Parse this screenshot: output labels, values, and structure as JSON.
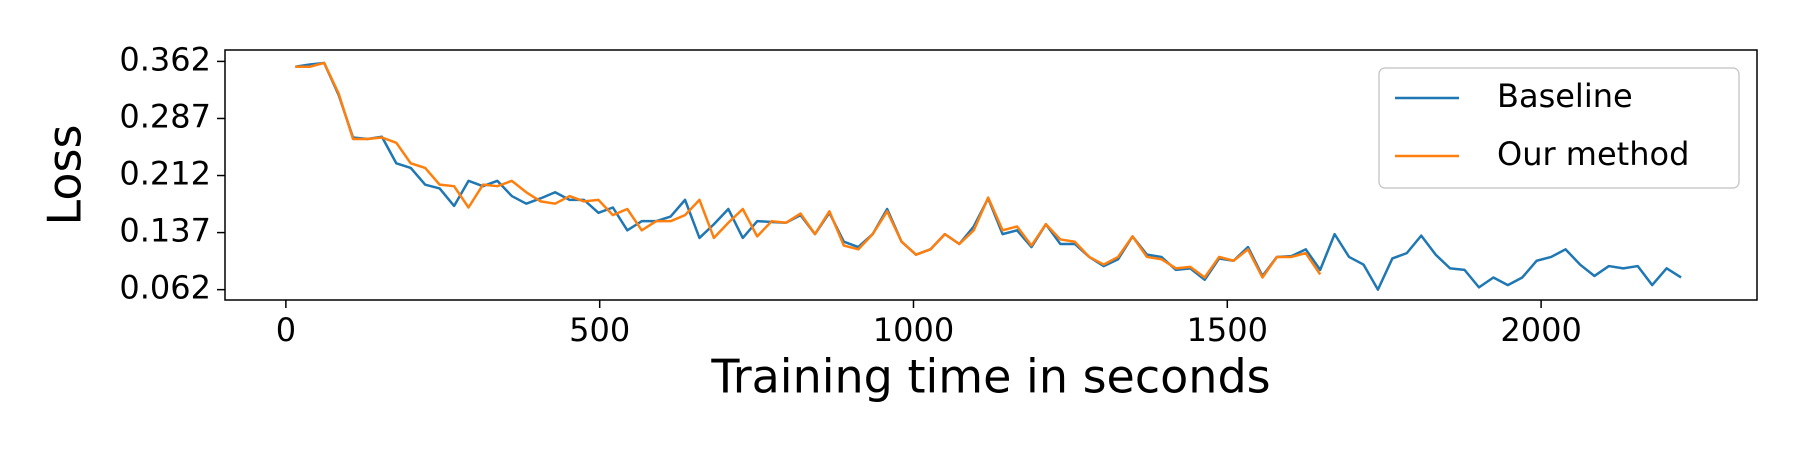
{
  "chart_data": {
    "type": "line",
    "xlabel": "Training time in seconds",
    "ylabel": "Loss",
    "xlim": [
      -97,
      2344
    ],
    "ylim": [
      0.0484,
      0.377
    ],
    "xticks": [
      0,
      500,
      1000,
      1500,
      2000
    ],
    "yticks": [
      0.362,
      0.287,
      0.212,
      0.137,
      0.062
    ],
    "legend": "upper right",
    "series": [
      {
        "name": "Baseline",
        "color": "#1f77b4",
        "x": [
          15,
          38,
          61,
          84,
          107,
          130,
          153,
          176,
          199,
          222,
          245,
          268,
          291,
          314,
          337,
          360,
          383,
          406,
          429,
          452,
          475,
          498,
          521,
          544,
          567,
          590,
          613,
          636,
          659,
          682,
          705,
          728,
          751,
          774,
          797,
          820,
          843,
          866,
          889,
          912,
          935,
          958,
          981,
          1004,
          1027,
          1050,
          1073,
          1096,
          1119,
          1142,
          1165,
          1188,
          1211,
          1234,
          1257,
          1280,
          1303,
          1326,
          1349,
          1372,
          1395,
          1418,
          1441,
          1464,
          1487,
          1510,
          1533,
          1556,
          1579,
          1602,
          1625,
          1648,
          1671,
          1694,
          1717,
          1740,
          1763,
          1786,
          1809,
          1832,
          1855,
          1878,
          1901,
          1924,
          1947,
          1970,
          1993,
          2016,
          2039,
          2062,
          2085,
          2108,
          2131,
          2154,
          2177,
          2200,
          2223
        ],
        "values": [
          0.355,
          0.358,
          0.36,
          0.318,
          0.262,
          0.26,
          0.263,
          0.228,
          0.222,
          0.2,
          0.195,
          0.172,
          0.205,
          0.198,
          0.205,
          0.185,
          0.175,
          0.182,
          0.19,
          0.18,
          0.18,
          0.163,
          0.17,
          0.14,
          0.152,
          0.152,
          0.158,
          0.18,
          0.13,
          0.148,
          0.168,
          0.13,
          0.152,
          0.151,
          0.15,
          0.16,
          0.135,
          0.163,
          0.125,
          0.118,
          0.135,
          0.168,
          0.125,
          0.108,
          0.115,
          0.135,
          0.122,
          0.145,
          0.182,
          0.135,
          0.14,
          0.118,
          0.148,
          0.122,
          0.122,
          0.105,
          0.093,
          0.102,
          0.132,
          0.108,
          0.105,
          0.088,
          0.09,
          0.075,
          0.103,
          0.1,
          0.118,
          0.08,
          0.105,
          0.106,
          0.115,
          0.088,
          0.135,
          0.105,
          0.095,
          0.062,
          0.103,
          0.11,
          0.133,
          0.108,
          0.09,
          0.088,
          0.065,
          0.078,
          0.068,
          0.078,
          0.1,
          0.105,
          0.115,
          0.095,
          0.08,
          0.093,
          0.09,
          0.093,
          0.068,
          0.09,
          0.078
        ]
      },
      {
        "name": "Our method",
        "color": "#ff7f0e",
        "x": [
          15,
          38,
          61,
          84,
          107,
          130,
          153,
          176,
          199,
          222,
          245,
          268,
          291,
          314,
          337,
          360,
          383,
          406,
          429,
          452,
          475,
          498,
          521,
          544,
          567,
          590,
          613,
          636,
          659,
          682,
          705,
          728,
          751,
          774,
          797,
          820,
          843,
          866,
          889,
          912,
          935,
          958,
          981,
          1004,
          1027,
          1050,
          1073,
          1096,
          1119,
          1142,
          1165,
          1188,
          1211,
          1234,
          1257,
          1280,
          1303,
          1326,
          1349,
          1372,
          1395,
          1418,
          1441,
          1464,
          1487,
          1510,
          1533,
          1556,
          1579,
          1602,
          1625,
          1648
        ],
        "values": [
          0.355,
          0.355,
          0.36,
          0.32,
          0.26,
          0.26,
          0.262,
          0.255,
          0.228,
          0.222,
          0.2,
          0.198,
          0.17,
          0.2,
          0.198,
          0.205,
          0.19,
          0.178,
          0.175,
          0.185,
          0.178,
          0.18,
          0.16,
          0.168,
          0.14,
          0.152,
          0.152,
          0.16,
          0.18,
          0.13,
          0.15,
          0.168,
          0.132,
          0.152,
          0.15,
          0.162,
          0.135,
          0.165,
          0.12,
          0.115,
          0.135,
          0.165,
          0.125,
          0.108,
          0.115,
          0.135,
          0.122,
          0.14,
          0.183,
          0.14,
          0.145,
          0.12,
          0.148,
          0.128,
          0.125,
          0.105,
          0.095,
          0.105,
          0.132,
          0.105,
          0.102,
          0.09,
          0.092,
          0.078,
          0.105,
          0.1,
          0.115,
          0.078,
          0.105,
          0.105,
          0.11,
          0.082
        ]
      }
    ]
  }
}
